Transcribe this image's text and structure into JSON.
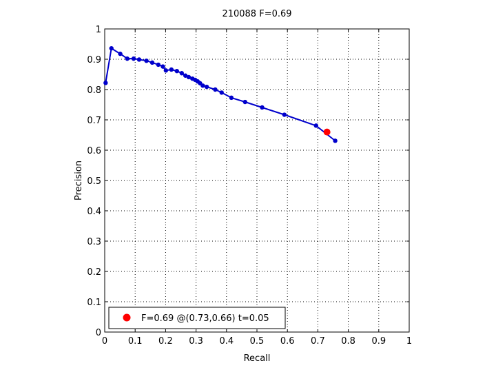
{
  "chart_data": {
    "type": "line",
    "title": "210088 F=0.69",
    "xlabel": "Recall",
    "ylabel": "Precision",
    "xlim": [
      0,
      1
    ],
    "ylim": [
      0,
      1
    ],
    "xticks": [
      "0",
      "0.1",
      "0.2",
      "0.3",
      "0.4",
      "0.5",
      "0.6",
      "0.7",
      "0.8",
      "0.9",
      "1"
    ],
    "yticks": [
      "0",
      "0.1",
      "0.2",
      "0.3",
      "0.4",
      "0.5",
      "0.6",
      "0.7",
      "0.8",
      "0.9",
      "1"
    ],
    "grid": true,
    "grid_style": "dotted",
    "legend_position": "bottom-left",
    "series": [
      {
        "color": "#0000cc",
        "marker": "circle",
        "x": [
          0.003,
          0.022,
          0.051,
          0.074,
          0.095,
          0.113,
          0.137,
          0.156,
          0.176,
          0.191,
          0.201,
          0.219,
          0.237,
          0.253,
          0.265,
          0.276,
          0.288,
          0.297,
          0.305,
          0.313,
          0.322,
          0.335,
          0.363,
          0.384,
          0.416,
          0.461,
          0.517,
          0.59,
          0.694,
          0.757
        ],
        "values": [
          0.822,
          0.936,
          0.918,
          0.902,
          0.902,
          0.899,
          0.895,
          0.889,
          0.882,
          0.876,
          0.863,
          0.866,
          0.861,
          0.854,
          0.846,
          0.841,
          0.836,
          0.832,
          0.827,
          0.821,
          0.813,
          0.809,
          0.8,
          0.79,
          0.773,
          0.759,
          0.741,
          0.717,
          0.681,
          0.631
        ]
      }
    ],
    "highlight_point": {
      "x": 0.73,
      "y": 0.66,
      "color": "#ff0000",
      "label": "F=0.69 @(0.73,0.66) t=0.05"
    }
  }
}
